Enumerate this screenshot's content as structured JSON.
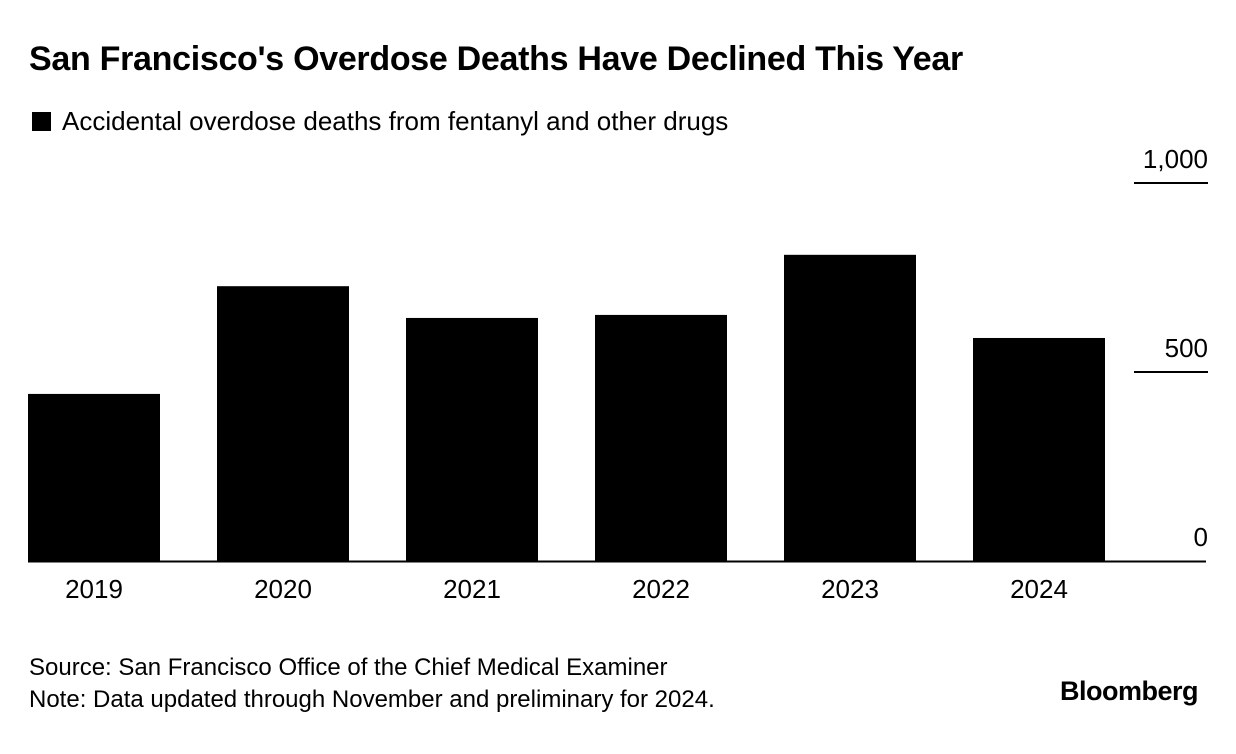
{
  "chart_data": {
    "type": "bar",
    "title": "San Francisco's Overdose Deaths Have Declined This Year",
    "legend": [
      {
        "name": "Accidental overdose deaths from fentanyl and other drugs",
        "color": "#000000"
      }
    ],
    "categories": [
      "2019",
      "2020",
      "2021",
      "2022",
      "2023",
      "2024"
    ],
    "values": [
      442,
      727,
      643,
      651,
      810,
      590
    ],
    "ylim": [
      0,
      1000
    ],
    "yticks": [
      0,
      500,
      1000
    ],
    "ytick_labels": [
      "0",
      "500",
      "1,000"
    ],
    "xlabel": "",
    "ylabel": "",
    "grid": false
  },
  "footer": {
    "source": "Source: San Francisco Office of the Chief Medical Examiner",
    "note": "Note: Data updated through November and preliminary for 2024."
  },
  "brand": "Bloomberg"
}
